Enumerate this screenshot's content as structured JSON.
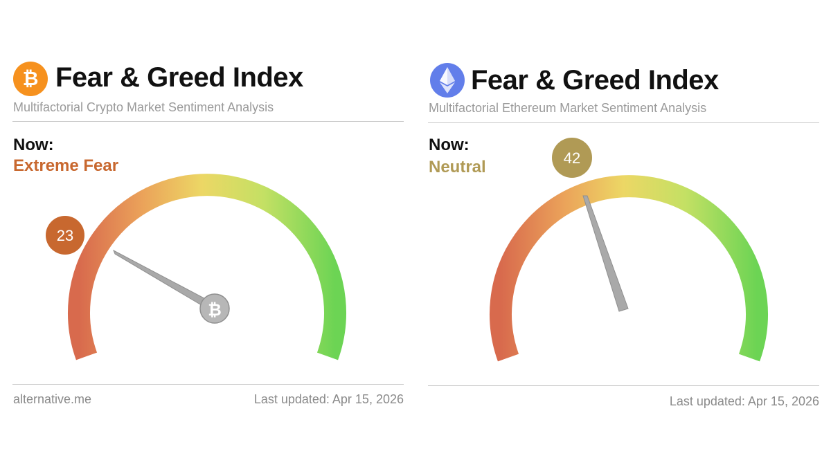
{
  "colors": {
    "fear_orange": "#c8682f",
    "neutral_olive": "#b09a55",
    "bitcoin_orange": "#f6911e",
    "ethereum_blue": "#627eea",
    "needle_gray": "#a9a9a9"
  },
  "panels": [
    {
      "coin": "bitcoin",
      "icon": "bitcoin-icon",
      "title": "Fear & Greed Index",
      "subtitle": "Multifactorial Crypto Market Sentiment Analysis",
      "now_label": "Now:",
      "sentiment": "Extreme Fear",
      "value": 23,
      "value_text": "23",
      "hub_icon": "bitcoin-icon",
      "footer_left": "alternative.me",
      "footer_right": "Last updated: Apr 15, 2026"
    },
    {
      "coin": "ethereum",
      "icon": "ethereum-icon",
      "title": "Fear & Greed Index",
      "subtitle": "Multifactorial Ethereum Market Sentiment Analysis",
      "now_label": "Now:",
      "sentiment": "Neutral",
      "value": 42,
      "value_text": "42",
      "footer_right": "Last updated: Apr 15, 2026"
    }
  ]
}
